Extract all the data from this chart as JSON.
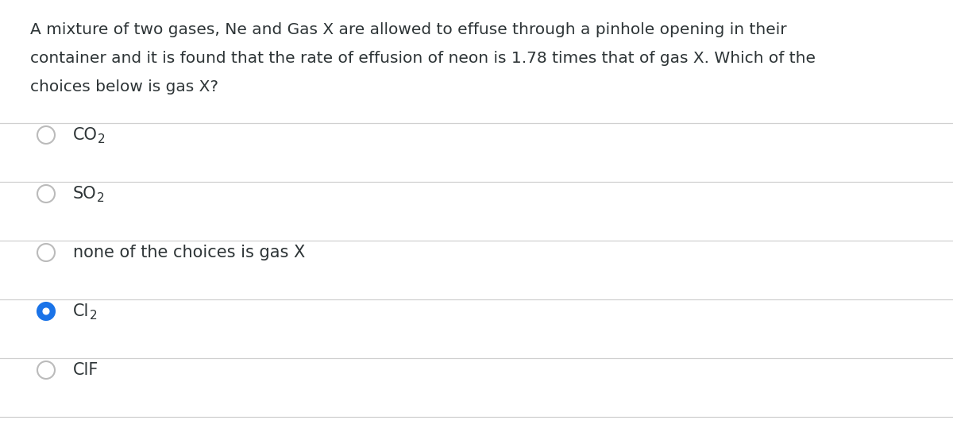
{
  "background_color": "#ffffff",
  "question_text_lines": [
    "A mixture of two gases, Ne and Gas X are allowed to effuse through a pinhole opening in their",
    "container and it is found that the rate of effusion of neon is 1.78 times that of gas X. Which of the",
    "choices below is gas X?"
  ],
  "choices": [
    {
      "main": "CO",
      "sub": "2",
      "selected": false
    },
    {
      "main": "SO",
      "sub": "2",
      "selected": false
    },
    {
      "main": "none of the choices is gas X",
      "sub": "",
      "selected": false
    },
    {
      "main": "Cl",
      "sub": "2",
      "selected": true
    },
    {
      "main": "ClF",
      "sub": "",
      "selected": false
    }
  ],
  "divider_color": "#d0d0d0",
  "text_color": "#2d3436",
  "circle_edge_color": "#bbbbbb",
  "selected_fill_color": "#1a73e8",
  "unselected_fill_color": "#ffffff",
  "question_font_size": 14.5,
  "choice_font_size": 15.0,
  "sub_font_size": 11.0,
  "fig_width": 12.0,
  "fig_height": 5.44,
  "dpi": 100
}
